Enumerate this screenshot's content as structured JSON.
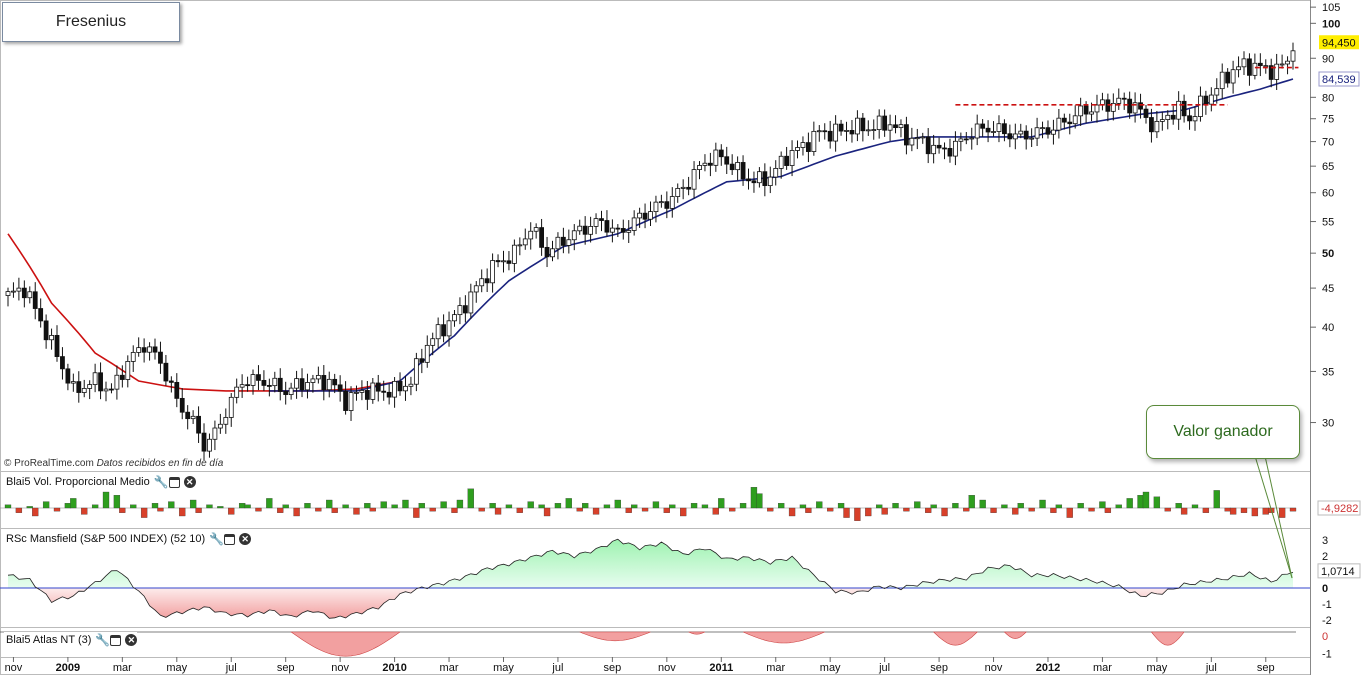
{
  "title": "Fresenius",
  "credit": {
    "source": "© ProRealTime.com",
    "note": "Datos recibidos en fin de día"
  },
  "price_axis": {
    "ticks": [
      {
        "v": 105,
        "label": "105",
        "bold": false
      },
      {
        "v": 100,
        "label": "100",
        "bold": true
      },
      {
        "v": 90,
        "label": "90",
        "bold": false
      },
      {
        "v": 80,
        "label": "80",
        "bold": false
      },
      {
        "v": 75,
        "label": "75",
        "bold": false
      },
      {
        "v": 70,
        "label": "70",
        "bold": false
      },
      {
        "v": 65,
        "label": "65",
        "bold": false
      },
      {
        "v": 60,
        "label": "60",
        "bold": false
      },
      {
        "v": 55,
        "label": "55",
        "bold": false
      },
      {
        "v": 50,
        "label": "50",
        "bold": true
      },
      {
        "v": 45,
        "label": "45",
        "bold": false
      },
      {
        "v": 40,
        "label": "40",
        "bold": false
      },
      {
        "v": 35,
        "label": "35",
        "bold": false
      },
      {
        "v": 30,
        "label": "30",
        "bold": false
      }
    ],
    "last_price": "94,450",
    "ma_value": "84,539"
  },
  "panels": {
    "volume": {
      "label": "Blai5 Vol. Proporcional Medio",
      "value": "-4,9282"
    },
    "rsc": {
      "label": "RSc Mansfield (S&P 500 INDEX) (52 10)",
      "value": "1,0714",
      "ticks": [
        "3",
        "2",
        "1",
        "0",
        "-1",
        "-2"
      ]
    },
    "atlas": {
      "label": "Blai5 Atlas NT (3)",
      "ticks": [
        "0",
        "-1"
      ]
    }
  },
  "callout": "Valor ganador",
  "time_axis": [
    {
      "label": "nov",
      "bold": false
    },
    {
      "label": "2009",
      "bold": true
    },
    {
      "label": "mar",
      "bold": false
    },
    {
      "label": "may",
      "bold": false
    },
    {
      "label": "jul",
      "bold": false
    },
    {
      "label": "sep",
      "bold": false
    },
    {
      "label": "nov",
      "bold": false
    },
    {
      "label": "2010",
      "bold": true
    },
    {
      "label": "mar",
      "bold": false
    },
    {
      "label": "may",
      "bold": false
    },
    {
      "label": "jul",
      "bold": false
    },
    {
      "label": "sep",
      "bold": false
    },
    {
      "label": "nov",
      "bold": false
    },
    {
      "label": "2011",
      "bold": true
    },
    {
      "label": "mar",
      "bold": false
    },
    {
      "label": "may",
      "bold": false
    },
    {
      "label": "jul",
      "bold": false
    },
    {
      "label": "sep",
      "bold": false
    },
    {
      "label": "nov",
      "bold": false
    },
    {
      "label": "2012",
      "bold": true
    },
    {
      "label": "mar",
      "bold": false
    },
    {
      "label": "may",
      "bold": false
    },
    {
      "label": "jul",
      "bold": false
    },
    {
      "label": "sep",
      "bold": false
    }
  ],
  "colors": {
    "up": "#ffffff",
    "down": "#111111",
    "ma_fast": "#cc1111",
    "ma_slow": "#1a237e",
    "vol_pos": "#2e9e1e",
    "vol_neg": "#d8402a",
    "rsc_pos": "#9ef2b0",
    "rsc_neg": "#f2a0a0",
    "resistance": "#cc1111",
    "last_price_bg": "#ffee00"
  },
  "chart_data": {
    "type": "candlestick",
    "scale": "log",
    "ylim": [
      26,
      106
    ],
    "price_path": [
      [
        0,
        44
      ],
      [
        3,
        45
      ],
      [
        8,
        38
      ],
      [
        12,
        33
      ],
      [
        16,
        34
      ],
      [
        19,
        33
      ],
      [
        22,
        36
      ],
      [
        25,
        38
      ],
      [
        28,
        36
      ],
      [
        31,
        32
      ],
      [
        34,
        30
      ],
      [
        36,
        28
      ],
      [
        38,
        29
      ],
      [
        40,
        31
      ],
      [
        43,
        34
      ],
      [
        47,
        34
      ],
      [
        51,
        33
      ],
      [
        55,
        34
      ],
      [
        59,
        34
      ],
      [
        62,
        32
      ],
      [
        65,
        33
      ],
      [
        68,
        33
      ],
      [
        71,
        33
      ],
      [
        74,
        34
      ],
      [
        77,
        38
      ],
      [
        80,
        40
      ],
      [
        83,
        42
      ],
      [
        86,
        45
      ],
      [
        89,
        48
      ],
      [
        93,
        50
      ],
      [
        96,
        54
      ],
      [
        99,
        50
      ],
      [
        102,
        52
      ],
      [
        106,
        54
      ],
      [
        109,
        55
      ],
      [
        112,
        53
      ],
      [
        115,
        55
      ],
      [
        118,
        57
      ],
      [
        122,
        59
      ],
      [
        125,
        62
      ],
      [
        128,
        66
      ],
      [
        131,
        67
      ],
      [
        134,
        64
      ],
      [
        137,
        62
      ],
      [
        140,
        63
      ],
      [
        143,
        67
      ],
      [
        146,
        69
      ],
      [
        149,
        72
      ],
      [
        152,
        72
      ],
      [
        155,
        73
      ],
      [
        158,
        73
      ],
      [
        162,
        74
      ],
      [
        165,
        71
      ],
      [
        168,
        70
      ],
      [
        171,
        68
      ],
      [
        174,
        69
      ],
      [
        177,
        72
      ],
      [
        180,
        73
      ],
      [
        183,
        72
      ],
      [
        186,
        71
      ],
      [
        189,
        72
      ],
      [
        192,
        73
      ],
      [
        195,
        75
      ],
      [
        198,
        77
      ],
      [
        201,
        78
      ],
      [
        204,
        79
      ],
      [
        207,
        78
      ],
      [
        209,
        75
      ],
      [
        211,
        73
      ],
      [
        213,
        76
      ],
      [
        215,
        77
      ],
      [
        217,
        75
      ],
      [
        219,
        78
      ],
      [
        221,
        81
      ],
      [
        223,
        84
      ],
      [
        225,
        87
      ],
      [
        227,
        88
      ],
      [
        229,
        88
      ],
      [
        231,
        87
      ],
      [
        233,
        87
      ],
      [
        235,
        89
      ],
      [
        236,
        94.45
      ]
    ],
    "ma_fast_path": [
      [
        0,
        53
      ],
      [
        8,
        43
      ],
      [
        16,
        37
      ],
      [
        24,
        34
      ],
      [
        32,
        33.2
      ],
      [
        40,
        33
      ],
      [
        48,
        33
      ],
      [
        56,
        33
      ],
      [
        64,
        33.2
      ],
      [
        72,
        34
      ]
    ],
    "ma_slow_path": [
      [
        48,
        33
      ],
      [
        56,
        33
      ],
      [
        64,
        33
      ],
      [
        72,
        34
      ],
      [
        82,
        39
      ],
      [
        92,
        46
      ],
      [
        102,
        51
      ],
      [
        112,
        53
      ],
      [
        122,
        57
      ],
      [
        132,
        62
      ],
      [
        142,
        63
      ],
      [
        152,
        67
      ],
      [
        162,
        70
      ],
      [
        168,
        71
      ],
      [
        178,
        71
      ],
      [
        188,
        71
      ],
      [
        198,
        74
      ],
      [
        208,
        76
      ],
      [
        216,
        77
      ],
      [
        224,
        80
      ],
      [
        230,
        82
      ],
      [
        236,
        84.54
      ]
    ],
    "resistance_lines": [
      {
        "x0": 174,
        "x1": 224,
        "y": 78.2
      },
      {
        "x0": 229,
        "x1": 237,
        "y": 87.5
      }
    ],
    "volume": [
      0.2,
      -0.3,
      0.1,
      -0.5,
      0.4,
      -0.2,
      0.3,
      0.6,
      -0.4,
      0.2,
      1.0,
      0.8,
      -0.3,
      0.2,
      -0.6,
      0.3,
      -0.2,
      0.4,
      -0.5,
      0.5,
      -0.3,
      0.2,
      0.1,
      -0.4,
      0.3,
      0.2,
      -0.2,
      0.6,
      -0.3,
      0.2,
      -0.5,
      0.3,
      -0.2,
      0.5,
      -0.3,
      0.2,
      -0.4,
      0.3,
      -0.2,
      0.4,
      0.2,
      0.5,
      -0.6,
      0.3,
      -0.2,
      0.4,
      -0.3,
      0.5,
      1.2,
      -0.2,
      0.3,
      -0.4,
      0.2,
      -0.3,
      0.4,
      0.2,
      -0.5,
      0.3,
      0.6,
      -0.2,
      0.3,
      -0.4,
      0.2,
      0.5,
      -0.3,
      0.2,
      -0.2,
      0.4,
      -0.3,
      0.2,
      -0.5,
      0.3,
      0.2,
      -0.4,
      0.6,
      -0.2,
      0.3,
      1.3,
      0.9,
      -0.2,
      0.3,
      -0.5,
      0.2,
      -0.3,
      0.4,
      -0.2,
      0.3,
      -0.6,
      -0.8,
      -0.5,
      0.2,
      -0.4,
      0.3,
      -0.2,
      0.4,
      -0.3,
      0.2,
      -0.5,
      0.3,
      -0.2,
      0.8,
      0.5,
      -0.3,
      0.2,
      -0.4,
      0.3,
      -0.2,
      0.5,
      -0.3,
      0.2,
      -0.6,
      0.3,
      -0.2,
      0.4,
      -0.3,
      0.2,
      0.6,
      0.8,
      1.0,
      0.7,
      -0.2,
      0.3,
      -0.4,
      0.2,
      -0.3,
      1.1,
      -0.2,
      -0.4,
      -0.3,
      -0.5,
      -0.4,
      -0.3,
      -0.6,
      -0.2
    ],
    "rsc_path": [
      [
        0,
        0.8
      ],
      [
        4,
        0.5
      ],
      [
        8,
        -0.8
      ],
      [
        12,
        -0.5
      ],
      [
        16,
        0.3
      ],
      [
        20,
        1.2
      ],
      [
        24,
        -0.2
      ],
      [
        28,
        -1.8
      ],
      [
        32,
        -1.5
      ],
      [
        36,
        -1.2
      ],
      [
        40,
        -1.6
      ],
      [
        44,
        -1.7
      ],
      [
        48,
        -1.4
      ],
      [
        52,
        -1.8
      ],
      [
        56,
        -1.4
      ],
      [
        60,
        -1.9
      ],
      [
        64,
        -1.6
      ],
      [
        68,
        -1.2
      ],
      [
        72,
        -0.4
      ],
      [
        76,
        0
      ],
      [
        80,
        0.3
      ],
      [
        84,
        0.7
      ],
      [
        88,
        1.2
      ],
      [
        92,
        1.5
      ],
      [
        96,
        1.9
      ],
      [
        100,
        2.3
      ],
      [
        104,
        2.0
      ],
      [
        108,
        2.4
      ],
      [
        112,
        3.0
      ],
      [
        116,
        2.5
      ],
      [
        120,
        2.8
      ],
      [
        124,
        2.1
      ],
      [
        128,
        2.5
      ],
      [
        132,
        1.8
      ],
      [
        136,
        1.9
      ],
      [
        140,
        1.6
      ],
      [
        144,
        1.9
      ],
      [
        148,
        0.8
      ],
      [
        152,
        -0.2
      ],
      [
        156,
        -0.3
      ],
      [
        160,
        0.1
      ],
      [
        164,
        0
      ],
      [
        168,
        0.3
      ],
      [
        172,
        0.5
      ],
      [
        176,
        0.6
      ],
      [
        180,
        1.2
      ],
      [
        184,
        1.4
      ],
      [
        188,
        0.8
      ],
      [
        192,
        0.8
      ],
      [
        196,
        0.6
      ],
      [
        200,
        0.4
      ],
      [
        204,
        0.1
      ],
      [
        208,
        -0.5
      ],
      [
        212,
        -0.3
      ],
      [
        216,
        0.2
      ],
      [
        220,
        0.4
      ],
      [
        224,
        0.6
      ],
      [
        228,
        0.9
      ],
      [
        232,
        0.4
      ],
      [
        236,
        1.07
      ]
    ],
    "atlas_bumps": [
      [
        52,
        72,
        -1.1
      ],
      [
        105,
        118,
        -0.4
      ],
      [
        125,
        128,
        -0.1
      ],
      [
        135,
        150,
        -0.5
      ],
      [
        170,
        178,
        -0.6
      ],
      [
        183,
        187,
        -0.3
      ],
      [
        210,
        216,
        -0.6
      ]
    ]
  }
}
